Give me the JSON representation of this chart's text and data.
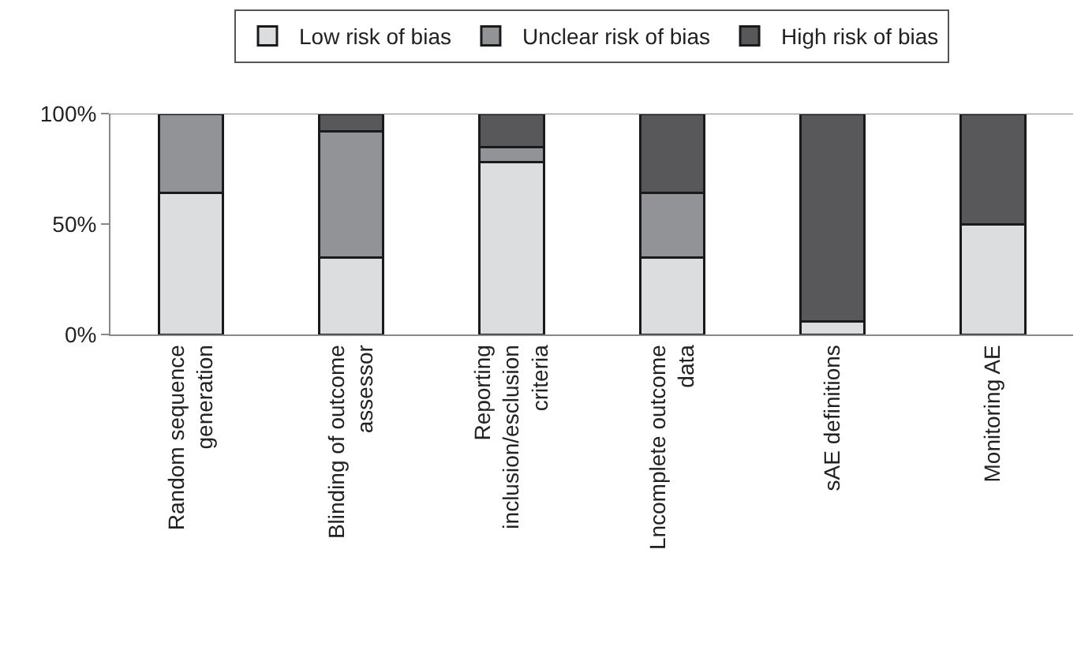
{
  "chart_data": {
    "type": "bar",
    "stacked": true,
    "categories": [
      "Random sequence\ngeneration",
      "Blinding of outcome\nassessor",
      "Reporting\ninclusion/esclusion\ncriteria",
      "Lncomplete outcome\ndata",
      "sAE definitions",
      "Monitoring AE"
    ],
    "series": [
      {
        "name": "Low risk of bias",
        "color": "#dcdddf",
        "values": [
          64,
          35,
          78,
          35,
          6,
          50
        ]
      },
      {
        "name": "Unclear risk of bias",
        "color": "#929396",
        "values": [
          36,
          57,
          7,
          29,
          null,
          null
        ]
      },
      {
        "name": "High risk of bias",
        "color": "#58585a",
        "values": [
          null,
          8,
          15,
          36,
          94,
          50
        ]
      }
    ],
    "ylim": [
      0,
      100
    ],
    "yticks": [
      {
        "value": 0,
        "label": "0%"
      },
      {
        "value": 50,
        "label": "50%"
      },
      {
        "value": 100,
        "label": "100%"
      }
    ],
    "legend": "top"
  }
}
